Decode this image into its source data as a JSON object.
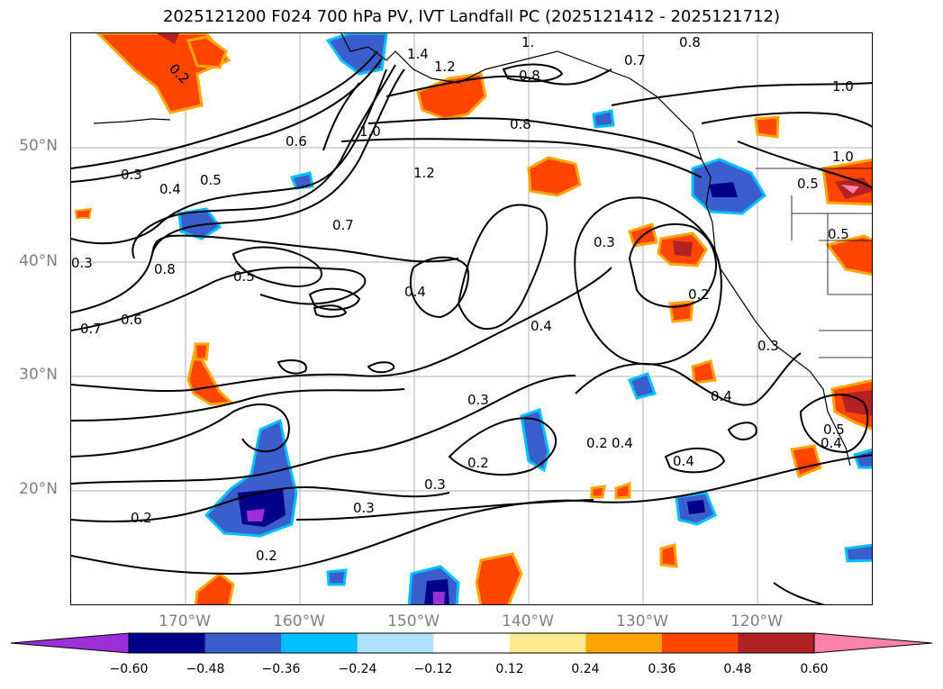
{
  "title": "2025121200 F024 700 hPa PV, IVT Landfall PC (2025121412 - 2025121712)",
  "lat_labels": [
    "50°N",
    "40°N",
    "30°N",
    "20°N"
  ],
  "lon_labels": [
    "170°W",
    "160°W",
    "150°W",
    "140°W",
    "130°W",
    "120°W"
  ],
  "colorbar": {
    "ticks": [
      "−0.60",
      "−0.48",
      "−0.36",
      "−0.24",
      "−0.12",
      "0.12",
      "0.24",
      "0.36",
      "0.48",
      "0.60"
    ],
    "colors": [
      "#9b30d9",
      "#00008b",
      "#3a5fcd",
      "#00bfff",
      "#b0e2ff",
      "#ffffff",
      "#fdea8e",
      "#ffa500",
      "#ff4500",
      "#b22222",
      "#ff82ab"
    ]
  },
  "contour_labels": [
    "0.2",
    "1.4",
    "1.2",
    "1.",
    "0.8",
    "0.7",
    "0.8",
    "1.0",
    "0.6",
    "0.8",
    "1.0",
    "0.3",
    "0.4",
    "0.5",
    "1.0",
    "1.2",
    "0.7",
    "0.3",
    "0.8",
    "0.5",
    "0.4",
    "0.3",
    "0.2",
    "0.7",
    "0.6",
    "0.4",
    "0.3",
    "0.4",
    "0.2",
    "0.3",
    "0.2",
    "0.4",
    "0.4",
    "0.3",
    "0.2",
    "0.3",
    "0.2",
    "0.5",
    "0.5",
    "0.5",
    "0.4"
  ]
}
